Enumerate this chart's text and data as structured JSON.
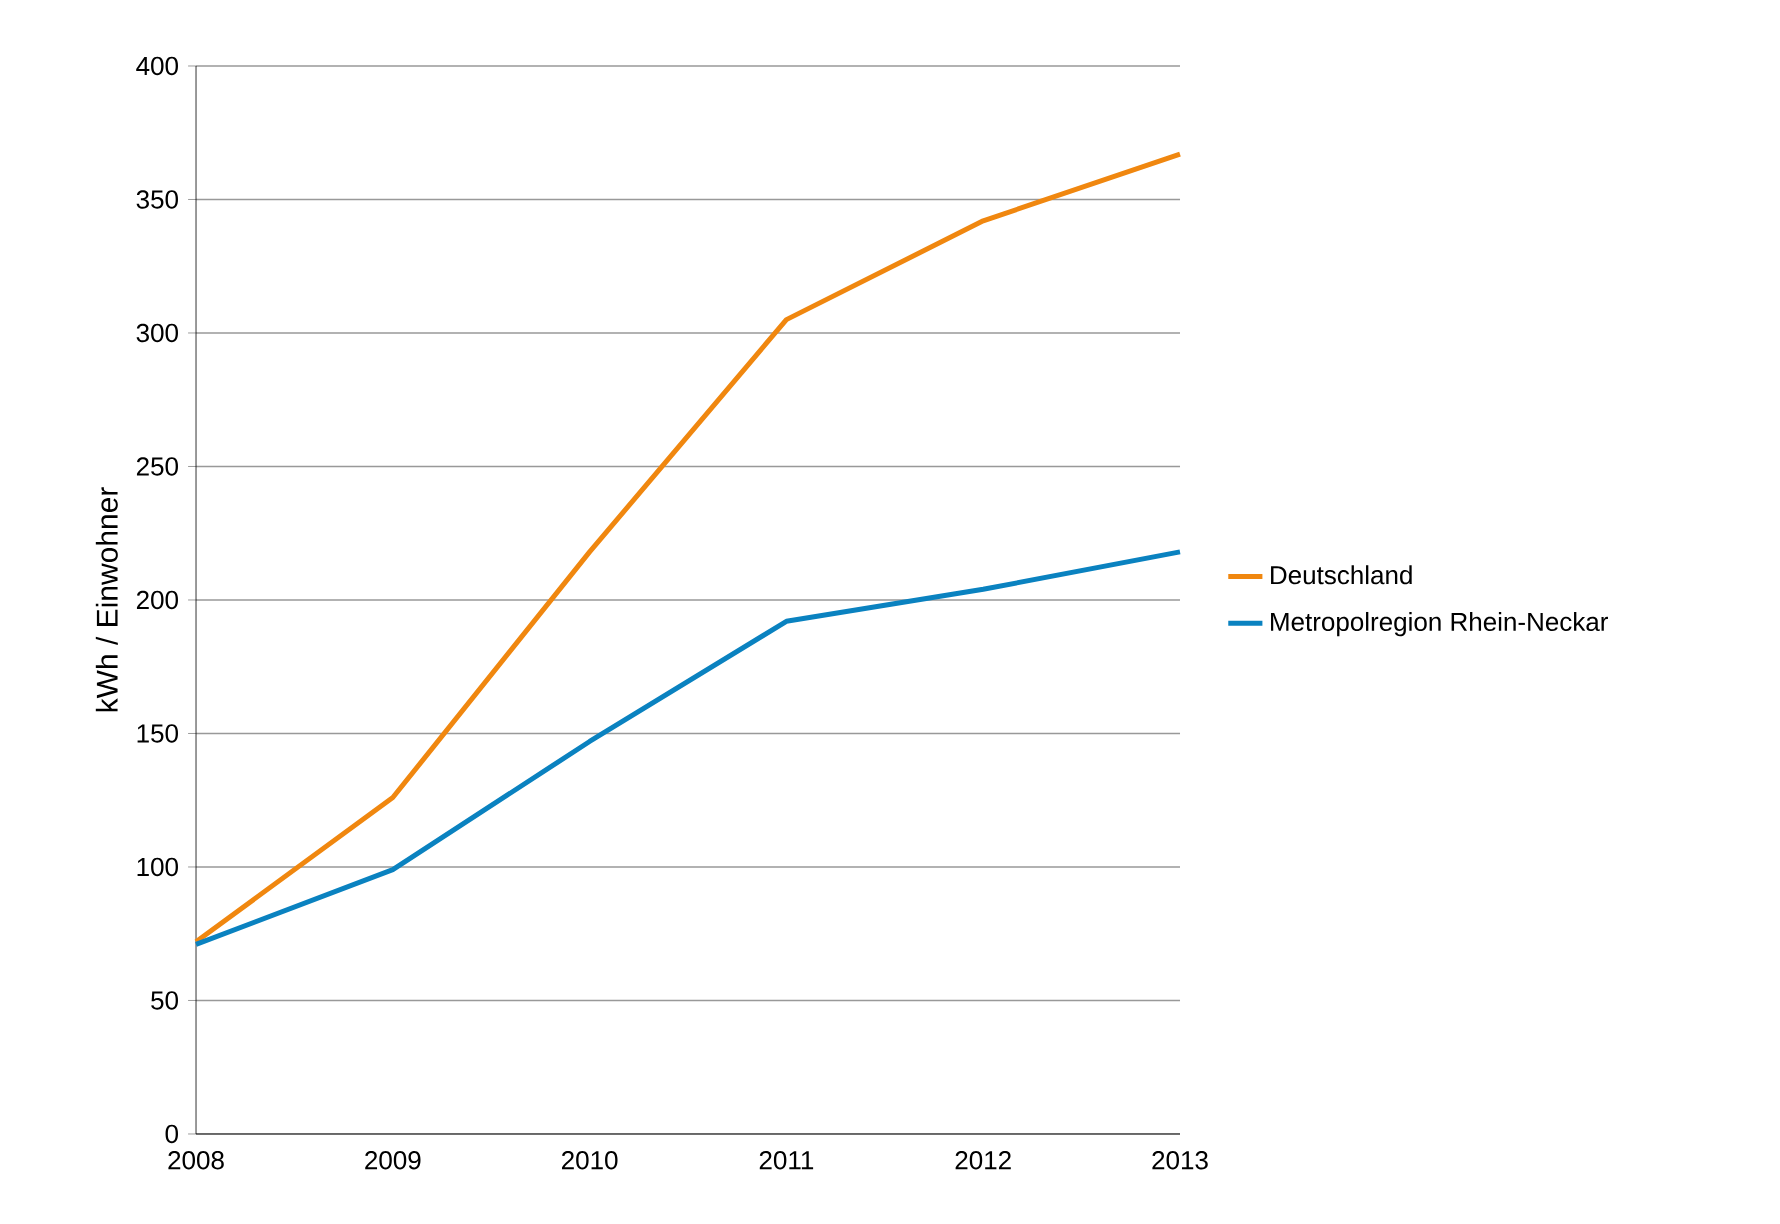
{
  "chart_data": {
    "type": "line",
    "ylabel": "kWh / Einwohner",
    "x": [
      2008,
      2009,
      2010,
      2011,
      2012,
      2013
    ],
    "series": [
      {
        "name": "Deutschland",
        "color": "#f0870f",
        "values": [
          72,
          126,
          218,
          305,
          342,
          367
        ]
      },
      {
        "name": "Metropolregion Rhein-Neckar",
        "color": "#0a82c0",
        "values": [
          71,
          99,
          147,
          192,
          204,
          218
        ]
      }
    ],
    "xlim": [
      2008,
      2013
    ],
    "xticks": [
      2008,
      2009,
      2010,
      2011,
      2012,
      2013
    ],
    "ylim": [
      0,
      400
    ],
    "yticks": [
      0,
      50,
      100,
      150,
      200,
      250,
      300,
      350,
      400
    ],
    "grid": "y",
    "legend": "right",
    "marker": "none",
    "line_style": "solid"
  }
}
